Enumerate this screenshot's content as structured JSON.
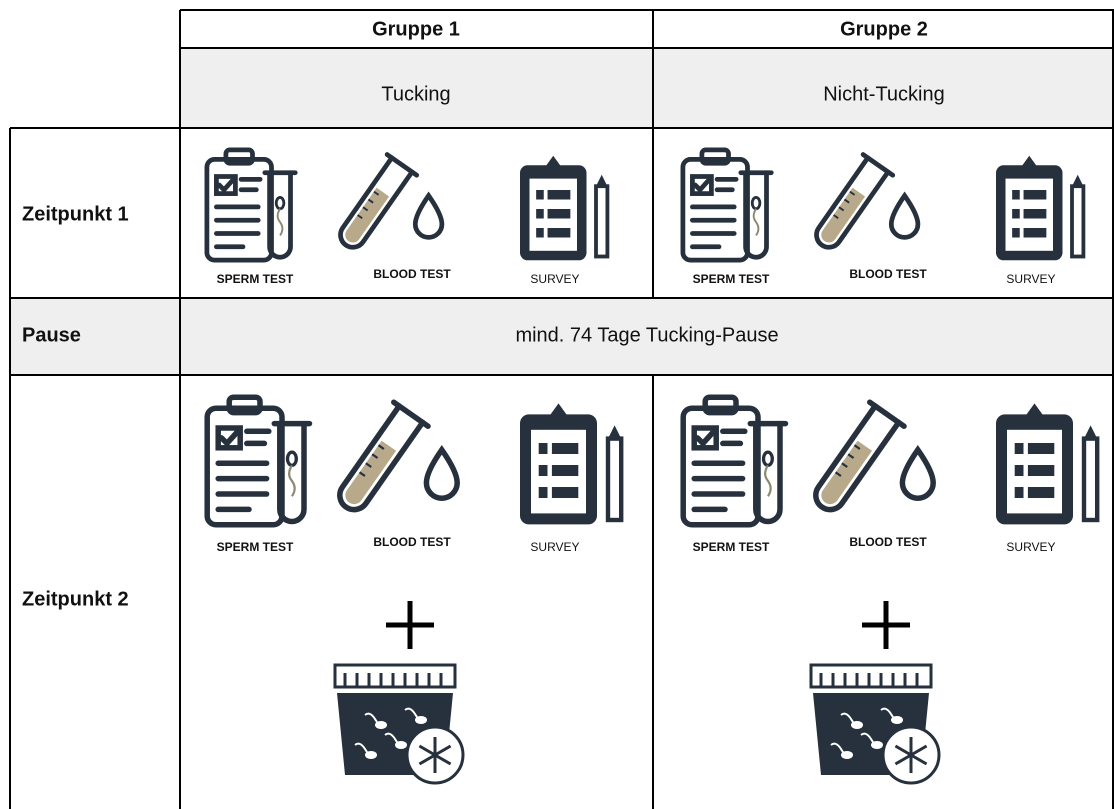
{
  "table": {
    "columns": [
      "Gruppe 1",
      "Gruppe 2"
    ],
    "conditions": [
      "Tucking",
      "Nicht-Tucking"
    ],
    "rows": [
      {
        "label": "Zeitpunkt 1",
        "cells": [
          [
            "SPERM TEST",
            "BLOOD TEST",
            "SURVEY"
          ],
          [
            "SPERM TEST",
            "BLOOD TEST",
            "SURVEY"
          ]
        ]
      },
      {
        "label": "Pause",
        "text": "mind. 74 Tage Tucking-Pause"
      },
      {
        "label": "Zeitpunkt 2",
        "cells": [
          [
            "SPERM TEST",
            "BLOOD TEST",
            "SURVEY"
          ],
          [
            "SPERM TEST",
            "BLOOD TEST",
            "SURVEY"
          ]
        ]
      }
    ]
  }
}
